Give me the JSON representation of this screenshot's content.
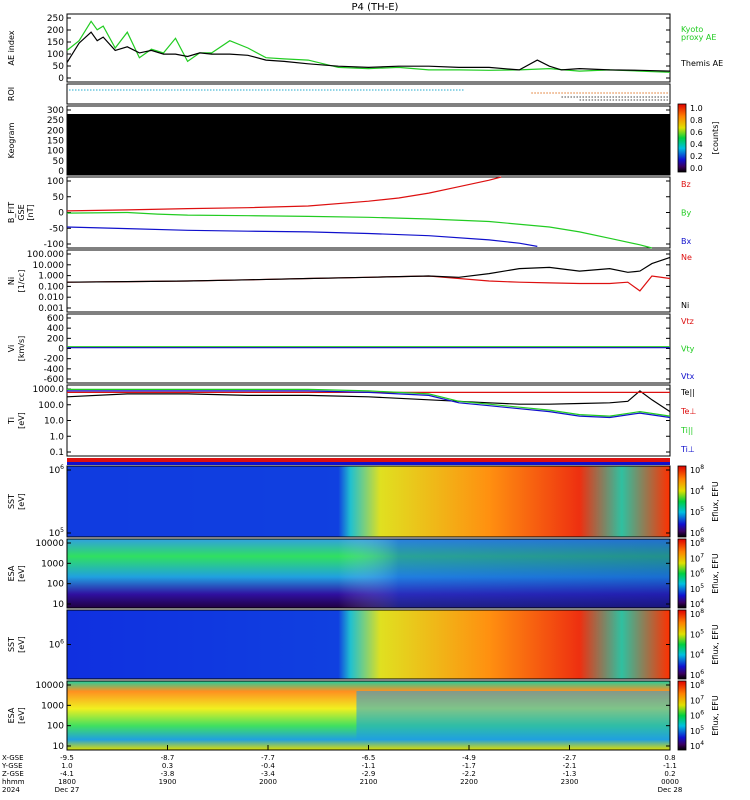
{
  "title": "P4 (TH-E)",
  "colors": {
    "red": "#dd1010",
    "green": "#22cc22",
    "blue": "#1010cc",
    "black": "#000000",
    "cyan": "#22aacc",
    "orange": "#e07020"
  },
  "chart_data": [
    {
      "type": "line",
      "panel": "ae",
      "ylabel": "AE index",
      "yticks": [
        "250",
        "200",
        "150",
        "100",
        "50",
        "0"
      ],
      "ylim": [
        -20,
        260
      ],
      "series": [
        {
          "name": "Kyoto proxy AE",
          "color": "green",
          "x": [
            0,
            0.02,
            0.04,
            0.05,
            0.06,
            0.08,
            0.1,
            0.12,
            0.14,
            0.16,
            0.18,
            0.2,
            0.22,
            0.24,
            0.27,
            0.3,
            0.33,
            0.36,
            0.4,
            0.45,
            0.5,
            0.55,
            0.6,
            0.65,
            0.7,
            0.75,
            0.8,
            0.85,
            0.9,
            0.95,
            1.0
          ],
          "y": [
            110,
            150,
            230,
            195,
            210,
            120,
            185,
            80,
            115,
            100,
            160,
            65,
            100,
            100,
            150,
            120,
            80,
            75,
            70,
            40,
            35,
            40,
            30,
            30,
            28,
            30,
            35,
            25,
            30,
            25,
            20
          ]
        },
        {
          "name": "Themis AE",
          "color": "black",
          "x": [
            0,
            0.02,
            0.04,
            0.05,
            0.06,
            0.08,
            0.1,
            0.12,
            0.14,
            0.16,
            0.18,
            0.2,
            0.22,
            0.24,
            0.27,
            0.3,
            0.33,
            0.36,
            0.4,
            0.45,
            0.5,
            0.55,
            0.6,
            0.65,
            0.7,
            0.75,
            0.78,
            0.8,
            0.82,
            0.85,
            0.9,
            0.95,
            1.0
          ],
          "y": [
            60,
            140,
            185,
            150,
            165,
            110,
            125,
            100,
            110,
            95,
            95,
            85,
            100,
            95,
            95,
            90,
            70,
            65,
            55,
            45,
            40,
            45,
            45,
            40,
            40,
            30,
            70,
            45,
            30,
            35,
            30,
            28,
            25
          ]
        }
      ],
      "labels": [
        {
          "text": "Kyoto",
          "color": "green"
        },
        {
          "text": "proxy AE",
          "color": "green"
        },
        {
          "text": "Themis AE",
          "color": "black"
        }
      ]
    },
    {
      "type": "dots",
      "panel": "roi",
      "ylabel": "ROI"
    },
    {
      "type": "heatmap",
      "panel": "keogram",
      "ylabel": "Keogram",
      "yticks": [
        "300",
        "250",
        "200",
        "150",
        "100",
        "50",
        "0"
      ],
      "ylim": [
        0,
        300
      ],
      "colorbar": {
        "ticks": [
          "1.0",
          "0.8",
          "0.6",
          "0.4",
          "0.2",
          "0.0"
        ],
        "label": "[counts]"
      }
    },
    {
      "type": "line",
      "panel": "b",
      "ylabel": "B_FIT",
      "ylabel2": "GSE",
      "ylabel3": "[nT]",
      "yticks": [
        "100",
        "50",
        "0",
        "-50",
        "-100"
      ],
      "ylim": [
        -110,
        110
      ],
      "series": [
        {
          "name": "Bz",
          "color": "red",
          "x": [
            0,
            0.1,
            0.2,
            0.3,
            0.4,
            0.5,
            0.55,
            0.6,
            0.65,
            0.7,
            0.72
          ],
          "y": [
            5,
            8,
            12,
            15,
            20,
            35,
            45,
            60,
            80,
            100,
            110
          ]
        },
        {
          "name": "By",
          "color": "green",
          "x": [
            0,
            0.1,
            0.15,
            0.2,
            0.3,
            0.4,
            0.5,
            0.6,
            0.7,
            0.8,
            0.85,
            0.9,
            0.95,
            0.97
          ],
          "y": [
            -2,
            0,
            -5,
            -8,
            -10,
            -12,
            -15,
            -20,
            -28,
            -45,
            -60,
            -80,
            -100,
            -110
          ]
        },
        {
          "name": "Bx",
          "color": "blue",
          "x": [
            0,
            0.1,
            0.2,
            0.3,
            0.4,
            0.5,
            0.6,
            0.7,
            0.75,
            0.78
          ],
          "y": [
            -45,
            -50,
            -55,
            -58,
            -60,
            -65,
            -72,
            -85,
            -95,
            -105
          ]
        }
      ]
    },
    {
      "type": "line",
      "panel": "n",
      "log": true,
      "ylabel": "Ni",
      "ylabel2": "[1/cc]",
      "yticks": [
        "100.000",
        "10.000",
        "1.000",
        "0.100",
        "0.010",
        "0.001"
      ],
      "ylim": [
        -3,
        2
      ],
      "series": [
        {
          "name": "Ne",
          "color": "red",
          "x": [
            0,
            0.1,
            0.2,
            0.3,
            0.4,
            0.5,
            0.6,
            0.65,
            0.7,
            0.75,
            0.8,
            0.85,
            0.9,
            0.93,
            0.95,
            0.97,
            1.0
          ],
          "y": [
            -0.6,
            -0.55,
            -0.5,
            -0.4,
            -0.3,
            -0.2,
            -0.1,
            -0.3,
            -0.5,
            -0.6,
            -0.65,
            -0.7,
            -0.7,
            -0.6,
            -1.3,
            -0.1,
            -0.3
          ]
        },
        {
          "name": "Ni",
          "color": "black",
          "x": [
            0,
            0.1,
            0.2,
            0.3,
            0.4,
            0.5,
            0.6,
            0.65,
            0.7,
            0.75,
            0.8,
            0.85,
            0.9,
            0.93,
            0.95,
            0.97,
            1.0
          ],
          "y": [
            -0.6,
            -0.55,
            -0.5,
            -0.4,
            -0.3,
            -0.2,
            -0.1,
            -0.2,
            0.1,
            0.5,
            0.6,
            0.3,
            0.5,
            0.2,
            0.3,
            0.9,
            1.4
          ]
        }
      ]
    },
    {
      "type": "line",
      "panel": "v",
      "ylabel": "Vi",
      "ylabel2": "[km/s]",
      "yticks": [
        "600",
        "400",
        "200",
        "0",
        "-200",
        "-400",
        "-600"
      ],
      "ylim": [
        -700,
        650
      ],
      "series": [
        {
          "name": "Vtz",
          "color": "red",
          "x": [
            0,
            1
          ],
          "y": [
            0,
            0
          ]
        },
        {
          "name": "Vty",
          "color": "green",
          "x": [
            0,
            1
          ],
          "y": [
            10,
            10
          ]
        },
        {
          "name": "Vtx",
          "color": "blue",
          "x": [
            0,
            1
          ],
          "y": [
            -10,
            -10
          ]
        }
      ]
    },
    {
      "type": "line",
      "panel": "t",
      "log": true,
      "ylabel": "Ti",
      "ylabel2": "[eV]",
      "yticks": [
        "1000.0",
        "100.0",
        "10.0",
        "1.0",
        "0.1"
      ],
      "ylim": [
        -1.2,
        3.6
      ],
      "series": [
        {
          "name": "Te||",
          "color": "black",
          "x": [
            0,
            0.1,
            0.2,
            0.3,
            0.4,
            0.5,
            0.55,
            0.6,
            0.65,
            0.7,
            0.75,
            0.8,
            0.85,
            0.9,
            0.93,
            0.95,
            0.97,
            1.0
          ],
          "y": [
            2.8,
            3.0,
            3.0,
            2.9,
            2.9,
            2.8,
            2.7,
            2.6,
            2.5,
            2.4,
            2.3,
            2.3,
            2.35,
            2.4,
            2.5,
            3.2,
            2.6,
            1.8
          ]
        },
        {
          "name": "Te⊥",
          "color": "red",
          "x": [
            0,
            1
          ],
          "y": [
            3.1,
            3.1
          ]
        },
        {
          "name": "Ti||",
          "color": "green",
          "x": [
            0,
            0.1,
            0.2,
            0.3,
            0.4,
            0.5,
            0.6,
            0.65,
            0.7,
            0.75,
            0.8,
            0.85,
            0.9,
            0.95,
            1.0
          ],
          "y": [
            3.3,
            3.3,
            3.3,
            3.3,
            3.3,
            3.2,
            3.0,
            2.5,
            2.3,
            2.1,
            1.9,
            1.6,
            1.5,
            1.8,
            1.5
          ]
        },
        {
          "name": "Ti⊥",
          "color": "blue",
          "x": [
            0,
            0.1,
            0.2,
            0.3,
            0.4,
            0.5,
            0.6,
            0.65,
            0.7,
            0.75,
            0.8,
            0.85,
            0.9,
            0.95,
            1.0
          ],
          "y": [
            3.2,
            3.2,
            3.2,
            3.2,
            3.2,
            3.1,
            2.9,
            2.4,
            2.2,
            2.0,
            1.8,
            1.5,
            1.4,
            1.7,
            1.4
          ]
        }
      ]
    },
    {
      "type": "heatmap",
      "panel": "sst-e",
      "ylabel": "SST",
      "ylabel2": "[eV]",
      "yticks": [
        "10^6",
        "10^5"
      ],
      "colorbar": {
        "ticks": [
          "10^8",
          "10^4",
          "10^5",
          "10^6"
        ],
        "label": "Eflux, EFU"
      }
    },
    {
      "type": "heatmap",
      "panel": "esa-e",
      "ylabel": "ESA",
      "ylabel2": "[eV]",
      "yticks": [
        "10000",
        "1000",
        "100",
        "10"
      ],
      "colorbar": {
        "ticks": [
          "10^8",
          "10^7",
          "10^6",
          "10^5",
          "10^4"
        ],
        "label": "Eflux, EFU"
      }
    },
    {
      "type": "heatmap",
      "panel": "sst-i",
      "ylabel": "SST",
      "ylabel2": "[eV]",
      "yticks": [
        "10^6"
      ],
      "colorbar": {
        "ticks": [
          "10^8",
          "10^5",
          "10^4",
          "10^6"
        ],
        "label": "Eflux, EFU"
      }
    },
    {
      "type": "heatmap",
      "panel": "esa-i",
      "ylabel": "ESA",
      "ylabel2": "[eV]",
      "yticks": [
        "10000",
        "1000",
        "100",
        "10"
      ],
      "colorbar": {
        "ticks": [
          "10^8",
          "10^7",
          "10^6",
          "10^5",
          "10^4"
        ],
        "label": "Eflux, EFU"
      }
    }
  ],
  "xaxis": {
    "row_labels": [
      "X-GSE",
      "Y-GSE",
      "Z-GSE",
      "hhmm",
      "2024"
    ],
    "columns": [
      [
        "-9.5",
        "1.0",
        "-4.1",
        "1800",
        "Dec 27"
      ],
      [
        "-8.7",
        "0.3",
        "-3.8",
        "1900",
        ""
      ],
      [
        "-7.7",
        "-0.4",
        "-3.4",
        "2000",
        ""
      ],
      [
        "-6.5",
        "-1.1",
        "-2.9",
        "2100",
        ""
      ],
      [
        "-4.9",
        "-1.7",
        "-2.2",
        "2200",
        ""
      ],
      [
        "-2.7",
        "-2.1",
        "-1.3",
        "2300",
        ""
      ],
      [
        "0.8",
        "-1.1",
        "0.2",
        "0000",
        "Dec 28"
      ]
    ]
  }
}
